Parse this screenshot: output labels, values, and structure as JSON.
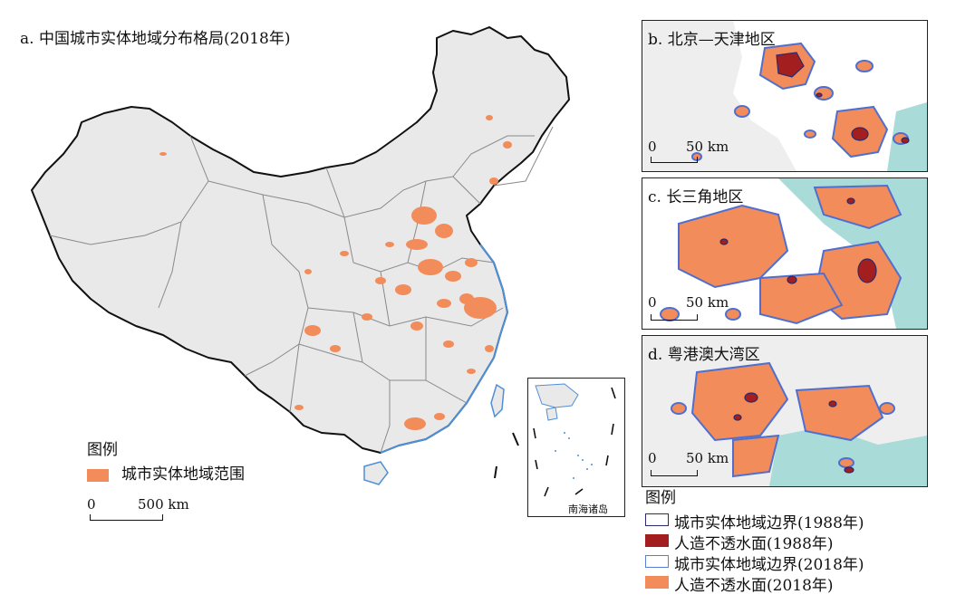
{
  "map_a": {
    "title": "a. 中国城市实体地域分布格局(2018年)",
    "legend_title": "图例",
    "legend_item": "城市实体地域范围",
    "scale_zero": "0",
    "scale_label": "500 km",
    "inset_label": "南海诸岛",
    "urban_color": "#f28c5a"
  },
  "panels": [
    {
      "title": "b. 北京—天津地区",
      "scale_zero": "0",
      "scale_label": "50 km"
    },
    {
      "title": "c. 长三角地区",
      "scale_zero": "0",
      "scale_label": "50 km"
    },
    {
      "title": "d. 粤港澳大湾区",
      "scale_zero": "0",
      "scale_label": "50 km"
    }
  ],
  "legend_right": {
    "title": "图例",
    "items": [
      {
        "label": "城市实体地域边界(1988年)",
        "style": "outline",
        "color": "#2a2a6e"
      },
      {
        "label": "人造不透水面(1988年)",
        "style": "fill",
        "color": "#a31f1f"
      },
      {
        "label": "城市实体地域边界(2018年)",
        "style": "outline",
        "color": "#5b7ed6"
      },
      {
        "label": "人造不透水面(2018年)",
        "style": "fill",
        "color": "#f28c5a"
      }
    ]
  },
  "colors": {
    "sea": "#a9dcd8",
    "terrain": "#e6e6e6",
    "boundary": "#111111",
    "province": "#888888",
    "urban_1988": "#a31f1f",
    "urban_2018": "#f28c5a",
    "edge_2018": "#4f6fd0"
  }
}
